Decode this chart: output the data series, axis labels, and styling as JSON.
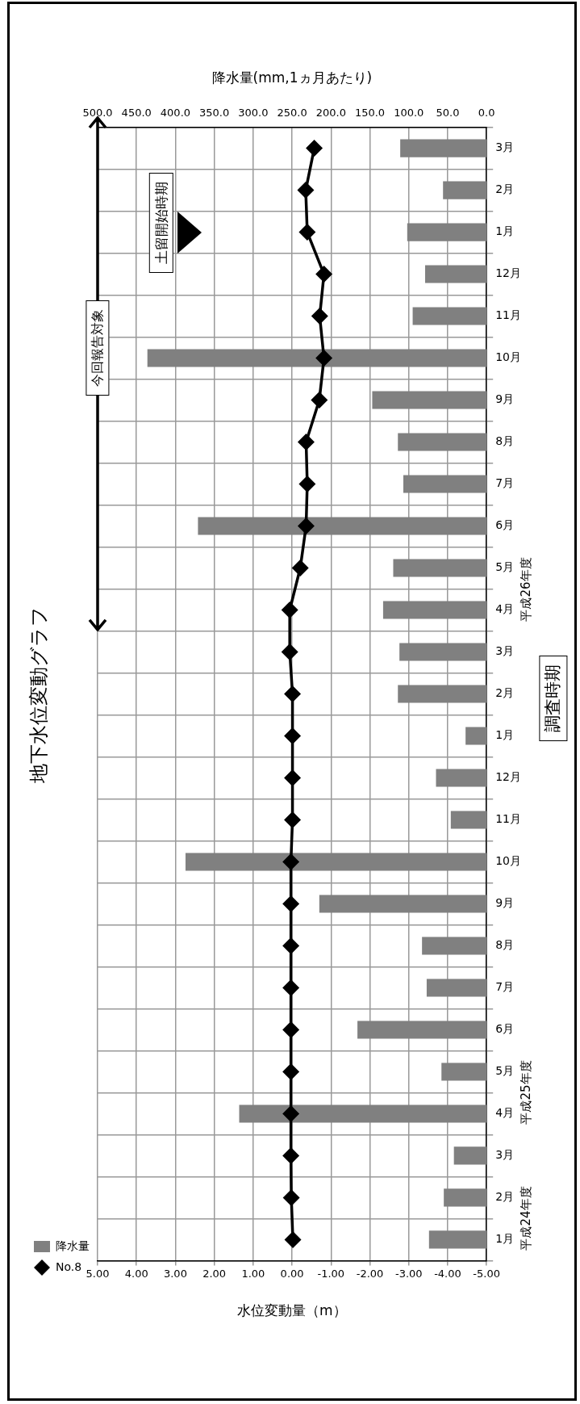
{
  "chart_data": {
    "type": "bar",
    "orientation": "horizontal",
    "title": "地下水位変動グラフ",
    "xlabel": "水位変動量（m）",
    "x2label": "降水量(mm,1ヵ月あたり)",
    "ylabel": "調査時期",
    "categories": [
      "3月",
      "2月",
      "1月",
      "12月",
      "11月",
      "10月",
      "9月",
      "8月",
      "7月",
      "6月",
      "5月",
      "4月",
      "3月",
      "2月",
      "1月",
      "12月",
      "11月",
      "10月",
      "9月",
      "8月",
      "7月",
      "6月",
      "5月",
      "4月",
      "3月",
      "2月",
      "1月"
    ],
    "series": [
      {
        "name": "降水量",
        "axis": "x2",
        "color": "#808080",
        "values": [
          111,
          56,
          102,
          79,
          95,
          436,
          147,
          114,
          107,
          371,
          120,
          133,
          112,
          114,
          27,
          65,
          46,
          387,
          215,
          83,
          77,
          166,
          58,
          318,
          42,
          55,
          74
        ]
      },
      {
        "name": "No.8",
        "type": "line",
        "color": "#000000",
        "values": [
          -0.57,
          -0.35,
          -0.39,
          -0.82,
          -0.71,
          -0.82,
          -0.7,
          -0.36,
          -0.39,
          -0.36,
          -0.21,
          0.06,
          0.06,
          -0.01,
          -0.01,
          -0.01,
          -0.01,
          0.03,
          0.03,
          0.03,
          0.03,
          0.03,
          0.03,
          0.03,
          0.03,
          0.02,
          -0.02
        ]
      }
    ],
    "xlim": [
      5,
      -5
    ],
    "xticks": [
      {
        "value": 5,
        "label": "5.00"
      },
      {
        "value": 4,
        "label": "4.00"
      },
      {
        "value": 3,
        "label": "3.00"
      },
      {
        "value": 2,
        "label": "2.00"
      },
      {
        "value": 1,
        "label": "1.00"
      },
      {
        "value": 0,
        "label": "0.00"
      },
      {
        "value": -1,
        "label": "-1.00"
      },
      {
        "value": -2,
        "label": "-2.00"
      },
      {
        "value": -3,
        "label": "-3.00"
      },
      {
        "value": -4,
        "label": "-4.00"
      },
      {
        "value": -5,
        "label": "-5.00"
      }
    ],
    "x2lim": [
      500,
      0
    ],
    "x2ticks": [
      {
        "value": 500,
        "label": "500.0"
      },
      {
        "value": 450,
        "label": "450.0"
      },
      {
        "value": 400,
        "label": "400.0"
      },
      {
        "value": 350,
        "label": "350.0"
      },
      {
        "value": 300,
        "label": "300.0"
      },
      {
        "value": 250,
        "label": "250.0"
      },
      {
        "value": 200,
        "label": "200.0"
      },
      {
        "value": 150,
        "label": "150.0"
      },
      {
        "value": 100,
        "label": "100.0"
      },
      {
        "value": 50,
        "label": "50.0"
      },
      {
        "value": 0,
        "label": "0.0"
      }
    ],
    "annotations": [
      "平成24年度",
      "平成25年度",
      "平成26年度",
      "今回報告対象",
      "土留開始時期"
    ],
    "grid": true,
    "legend": "left",
    "marker": "diamond",
    "line_style": "solid"
  }
}
